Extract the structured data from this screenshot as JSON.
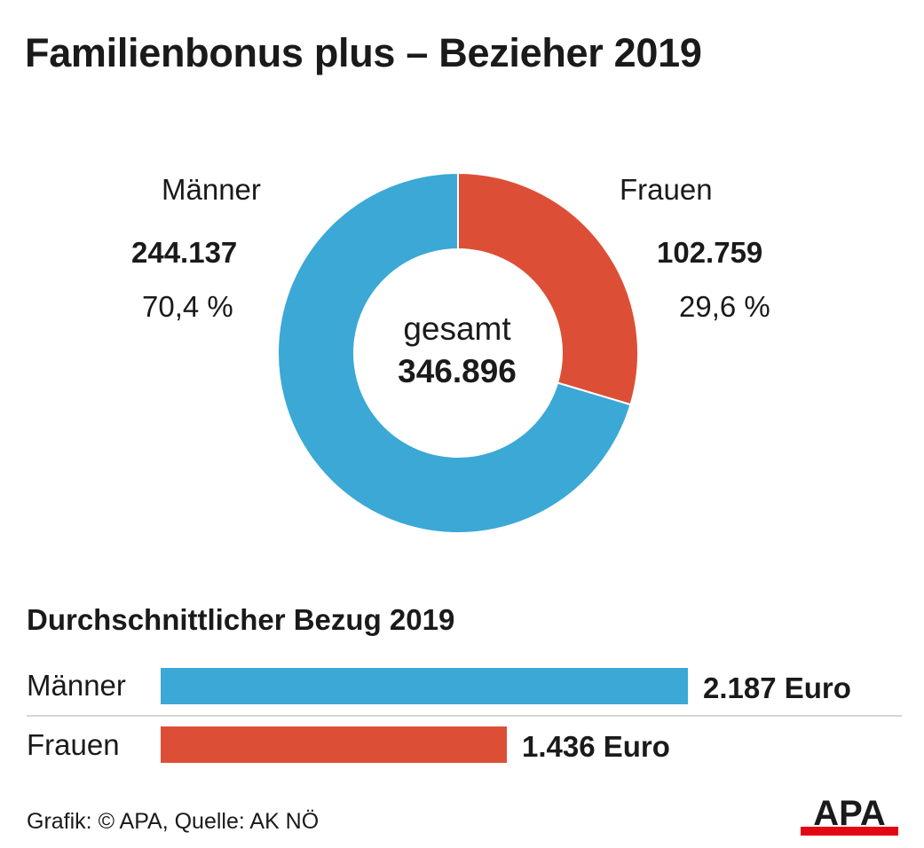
{
  "title": "Familienbonus plus – Bezieher 2019",
  "colors": {
    "maenner": "#3ba8d6",
    "frauen": "#dc4f36",
    "text": "#1a1a1a",
    "logo_red": "#e30613"
  },
  "donut": {
    "left_label": "Männer",
    "left_value": "244.137",
    "left_percent": "70,4 %",
    "right_label": "Frauen",
    "right_value": "102.759",
    "right_percent": "29,6 %",
    "center_label": "gesamt",
    "center_value": "346.896"
  },
  "bars": {
    "title": "Durchschnittlicher Bezug 2019",
    "rows": [
      {
        "label": "Männer",
        "value_text": "2.187 Euro"
      },
      {
        "label": "Frauen",
        "value_text": "1.436 Euro"
      }
    ]
  },
  "footer": {
    "source": "Grafik: © APA, Quelle: AK NÖ",
    "logo": "APA"
  },
  "chart_data": [
    {
      "type": "pie",
      "categories": [
        "Frauen",
        "Männer"
      ],
      "values": [
        102759,
        244137
      ],
      "percent": [
        29.6,
        70.4
      ],
      "total": 346896,
      "center_label": "gesamt",
      "colors": [
        "#dc4f36",
        "#3ba8d6"
      ]
    },
    {
      "type": "bar",
      "orientation": "horizontal",
      "title": "Durchschnittlicher Bezug 2019",
      "categories": [
        "Männer",
        "Frauen"
      ],
      "values": [
        2187,
        1436
      ],
      "unit": "Euro",
      "colors": [
        "#3ba8d6",
        "#dc4f36"
      ]
    }
  ]
}
